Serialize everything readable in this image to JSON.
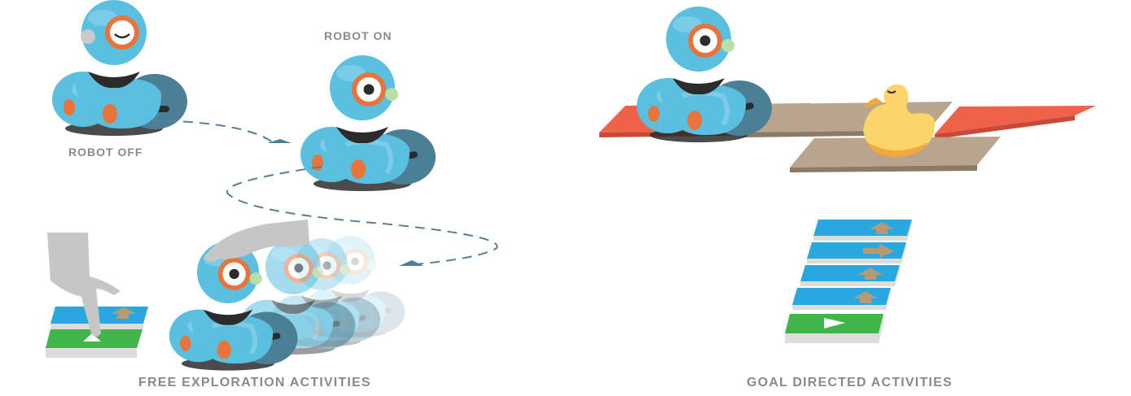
{
  "labels": {
    "robot_off": "ROBOT OFF",
    "robot_on": "ROBOT ON",
    "free_exploration": "FREE EXPLORATION ACTIVITIES",
    "goal_directed": "GOAL DIRECTED ACTIVITIES"
  },
  "colors": {
    "robot_body": "#5bbfe0",
    "robot_dark": "#4a7f96",
    "eye_ring": "#e8743b",
    "card_blue": "#29a8e0",
    "card_green": "#3fb54a",
    "mat_red": "#f0614a",
    "mat_tan": "#b9a58e",
    "duck": "#fbd46a",
    "hand": "#c6c6c6",
    "dash": "#5a7f96"
  },
  "icons": [
    "hand-icon",
    "robot-icon",
    "duck-icon",
    "arrow-card-icon",
    "play-card-icon"
  ]
}
